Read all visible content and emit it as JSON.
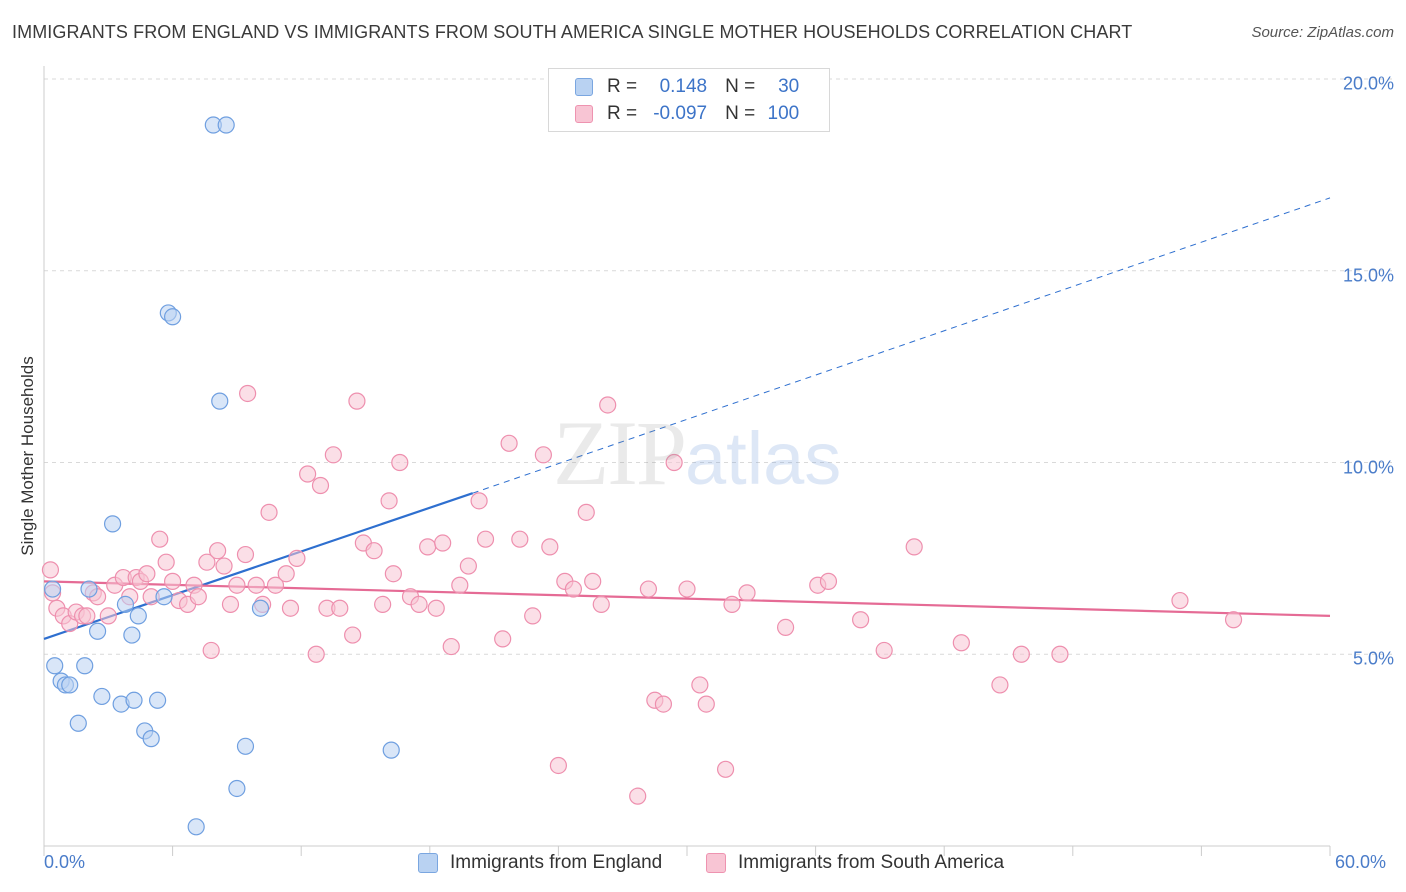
{
  "title": "IMMIGRANTS FROM ENGLAND VS IMMIGRANTS FROM SOUTH AMERICA SINGLE MOTHER HOUSEHOLDS CORRELATION CHART",
  "source": "Source: ZipAtlas.com",
  "watermark": {
    "zip": "ZIP",
    "atlas": "atlas"
  },
  "legend": {
    "r_label": "R =",
    "n_label": "N =",
    "england": {
      "r": "0.148",
      "n": "30"
    },
    "south_america": {
      "r": "-0.097",
      "n": "100"
    }
  },
  "colors": {
    "england_fill": "#b9d2f2",
    "england_stroke": "#6f9fe0",
    "england_line": "#2e6fcf",
    "sa_fill": "#f8c5d4",
    "sa_stroke": "#ee8fae",
    "sa_line": "#e56b95",
    "tick_text": "#4a7cc9",
    "grid": "#d9d9d9"
  },
  "chart_data": {
    "type": "scatter",
    "title": "IMMIGRANTS FROM ENGLAND VS IMMIGRANTS FROM SOUTH AMERICA SINGLE MOTHER HOUSEHOLDS CORRELATION CHART",
    "xlabel": "",
    "ylabel": "Single Mother Households",
    "xlim": [
      0,
      60
    ],
    "ylim": [
      0,
      20
    ],
    "x_tick_labels": [
      "0.0%",
      "60.0%"
    ],
    "y_ticks": [
      5,
      10,
      15,
      20
    ],
    "y_tick_labels": [
      "5.0%",
      "10.0%",
      "15.0%",
      "20.0%"
    ],
    "grid": "horizontal dashed",
    "legend_position": "bottom",
    "series": [
      {
        "name": "Immigrants from England",
        "r": 0.148,
        "n": 30,
        "trend": {
          "x": [
            0,
            20
          ],
          "y": [
            5.4,
            9.2
          ],
          "extended_to": [
            60,
            16.9
          ]
        },
        "points": [
          [
            0.4,
            6.7
          ],
          [
            0.5,
            4.7
          ],
          [
            0.8,
            4.3
          ],
          [
            1.0,
            4.2
          ],
          [
            1.2,
            4.2
          ],
          [
            1.6,
            3.2
          ],
          [
            1.9,
            4.7
          ],
          [
            2.1,
            6.7
          ],
          [
            2.5,
            5.6
          ],
          [
            2.7,
            3.9
          ],
          [
            3.2,
            8.4
          ],
          [
            3.6,
            3.7
          ],
          [
            3.8,
            6.3
          ],
          [
            4.1,
            5.5
          ],
          [
            4.2,
            3.8
          ],
          [
            4.4,
            6.0
          ],
          [
            4.7,
            3.0
          ],
          [
            5.0,
            2.8
          ],
          [
            5.3,
            3.8
          ],
          [
            5.6,
            6.5
          ],
          [
            5.8,
            13.9
          ],
          [
            6.0,
            13.8
          ],
          [
            7.1,
            0.5
          ],
          [
            7.9,
            18.8
          ],
          [
            8.2,
            11.6
          ],
          [
            8.5,
            18.8
          ],
          [
            9.0,
            1.5
          ],
          [
            9.4,
            2.6
          ],
          [
            10.1,
            6.2
          ],
          [
            16.2,
            2.5
          ]
        ]
      },
      {
        "name": "Immigrants from South America",
        "r": -0.097,
        "n": 100,
        "trend": {
          "x": [
            0,
            60
          ],
          "y": [
            6.9,
            6.0
          ]
        },
        "points": [
          [
            0.3,
            7.2
          ],
          [
            0.4,
            6.6
          ],
          [
            0.6,
            6.2
          ],
          [
            0.9,
            6.0
          ],
          [
            1.2,
            5.8
          ],
          [
            1.5,
            6.1
          ],
          [
            1.8,
            6.0
          ],
          [
            2.0,
            6.0
          ],
          [
            2.3,
            6.6
          ],
          [
            2.5,
            6.5
          ],
          [
            3.0,
            6.0
          ],
          [
            3.3,
            6.8
          ],
          [
            3.7,
            7.0
          ],
          [
            4.0,
            6.5
          ],
          [
            4.3,
            7.0
          ],
          [
            4.5,
            6.9
          ],
          [
            4.8,
            7.1
          ],
          [
            5.0,
            6.5
          ],
          [
            5.4,
            8.0
          ],
          [
            5.7,
            7.4
          ],
          [
            6.0,
            6.9
          ],
          [
            6.3,
            6.4
          ],
          [
            6.7,
            6.3
          ],
          [
            7.0,
            6.8
          ],
          [
            7.2,
            6.5
          ],
          [
            7.6,
            7.4
          ],
          [
            7.8,
            5.1
          ],
          [
            8.1,
            7.7
          ],
          [
            8.4,
            7.3
          ],
          [
            8.7,
            6.3
          ],
          [
            9.0,
            6.8
          ],
          [
            9.4,
            7.6
          ],
          [
            9.5,
            11.8
          ],
          [
            9.9,
            6.8
          ],
          [
            10.2,
            6.3
          ],
          [
            10.5,
            8.7
          ],
          [
            10.8,
            6.8
          ],
          [
            11.3,
            7.1
          ],
          [
            11.5,
            6.2
          ],
          [
            11.8,
            7.5
          ],
          [
            12.3,
            9.7
          ],
          [
            12.7,
            5.0
          ],
          [
            12.9,
            9.4
          ],
          [
            13.2,
            6.2
          ],
          [
            13.5,
            10.2
          ],
          [
            13.8,
            6.2
          ],
          [
            14.4,
            5.5
          ],
          [
            14.6,
            11.6
          ],
          [
            14.9,
            7.9
          ],
          [
            15.4,
            7.7
          ],
          [
            15.8,
            6.3
          ],
          [
            16.1,
            9.0
          ],
          [
            16.3,
            7.1
          ],
          [
            16.6,
            10.0
          ],
          [
            17.1,
            6.5
          ],
          [
            17.5,
            6.3
          ],
          [
            17.9,
            7.8
          ],
          [
            18.3,
            6.2
          ],
          [
            18.6,
            7.9
          ],
          [
            19.0,
            5.2
          ],
          [
            19.4,
            6.8
          ],
          [
            19.8,
            7.3
          ],
          [
            20.3,
            9.0
          ],
          [
            20.6,
            8.0
          ],
          [
            21.4,
            5.4
          ],
          [
            21.7,
            10.5
          ],
          [
            22.2,
            8.0
          ],
          [
            22.8,
            6.0
          ],
          [
            23.3,
            10.2
          ],
          [
            23.6,
            7.8
          ],
          [
            24.0,
            2.1
          ],
          [
            24.3,
            6.9
          ],
          [
            24.7,
            6.7
          ],
          [
            25.3,
            8.7
          ],
          [
            25.6,
            6.9
          ],
          [
            26.0,
            6.3
          ],
          [
            26.3,
            11.5
          ],
          [
            27.7,
            1.3
          ],
          [
            28.2,
            6.7
          ],
          [
            28.5,
            3.8
          ],
          [
            28.9,
            3.7
          ],
          [
            29.4,
            10.0
          ],
          [
            30.0,
            6.7
          ],
          [
            30.6,
            4.2
          ],
          [
            30.9,
            3.7
          ],
          [
            31.8,
            2.0
          ],
          [
            32.1,
            6.3
          ],
          [
            32.8,
            6.6
          ],
          [
            34.6,
            5.7
          ],
          [
            36.1,
            6.8
          ],
          [
            36.6,
            6.9
          ],
          [
            38.1,
            5.9
          ],
          [
            39.2,
            5.1
          ],
          [
            40.6,
            7.8
          ],
          [
            42.8,
            5.3
          ],
          [
            44.6,
            4.2
          ],
          [
            45.6,
            5.0
          ],
          [
            47.4,
            5.0
          ],
          [
            53.0,
            6.4
          ],
          [
            55.5,
            5.9
          ]
        ]
      }
    ]
  }
}
